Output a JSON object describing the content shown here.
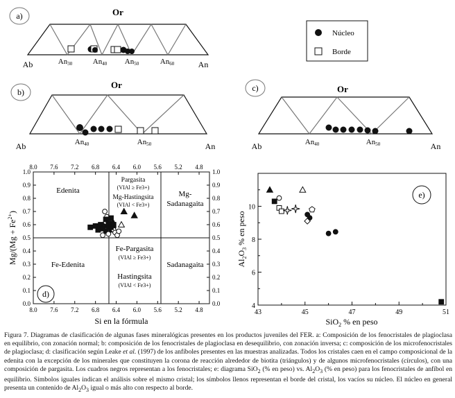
{
  "panel_a": {
    "label": "a)",
    "apex": "Or",
    "left_end": "Ab",
    "right_end": "An",
    "ticks": [
      {
        "base": "An",
        "sub": "30"
      },
      {
        "base": "An",
        "sub": "40"
      },
      {
        "base": "An",
        "sub": "50"
      },
      {
        "base": "An",
        "sub": "60"
      }
    ],
    "legend": {
      "nucleus": "Núcleo",
      "rim": "Borde"
    }
  },
  "panel_b": {
    "label": "b)",
    "apex": "Or",
    "left_end": "Ab",
    "right_end": "An",
    "ticks": [
      {
        "base": "An",
        "sub": "40"
      },
      {
        "base": "An",
        "sub": "50"
      }
    ]
  },
  "panel_c": {
    "label": "c)",
    "apex": "Or",
    "left_end": "Ab",
    "right_end": "An",
    "ticks": [
      {
        "base": "An",
        "sub": "40"
      },
      {
        "base": "An",
        "sub": "50"
      }
    ]
  },
  "chart_data": [
    {
      "type": "scatter",
      "panel": "d)",
      "title": "",
      "xlabel": "Si en la fórmula",
      "ylabel_base": "Mg/(Mg + Fe",
      "ylabel_sup": "2+",
      "ylabel_end": ")",
      "xlim": [
        8.0,
        4.6
      ],
      "ylim": [
        0.0,
        1.0
      ],
      "x_ticks": [
        "8.0",
        "7.6",
        "7.2",
        "6.8",
        "6.4",
        "6.0",
        "5.6",
        "5.2",
        "4.8"
      ],
      "y_ticks": [
        "0.0",
        "0.1",
        "0.2",
        "0.3",
        "0.4",
        "0.5",
        "0.6",
        "0.7",
        "0.8",
        "0.9",
        "1.0"
      ],
      "fields": {
        "edenita": "Edenita",
        "fe_edenita": "Fe-Edenita",
        "pargasita": "Pargasita",
        "pargasita_cond": "(VIAl ≥ Fe3+)",
        "mg_hastingsita": "Mg-Hastingsita",
        "mg_hastingsita_cond": "(VIAl < Fe3+)",
        "mg_sadanagaita_1": "Mg-",
        "mg_sadanagaita_2": "Sadanagaita",
        "fe_pargasita": "Fe-Pargasita",
        "fe_pargasita_cond": "(VIAl ≥ Fe3+)",
        "hastingsita": "Hastingsita",
        "hastingsita_cond": "(VIAl < Fe3+)",
        "sadanagaita": "Sadanagaita"
      },
      "series": [
        {
          "name": "filled circles",
          "points": [
            [
              6.6,
              0.6
            ],
            [
              6.55,
              0.58
            ],
            [
              6.5,
              0.56
            ],
            [
              6.45,
              0.58
            ],
            [
              6.6,
              0.55
            ],
            [
              6.7,
              0.57
            ],
            [
              6.48,
              0.62
            ]
          ]
        },
        {
          "name": "open circles",
          "points": [
            [
              6.62,
              0.7
            ],
            [
              6.58,
              0.66
            ],
            [
              6.52,
              0.64
            ],
            [
              6.6,
              0.62
            ],
            [
              6.5,
              0.6
            ],
            [
              6.45,
              0.56
            ],
            [
              6.42,
              0.54
            ],
            [
              6.55,
              0.53
            ],
            [
              6.38,
              0.52
            ],
            [
              6.66,
              0.52
            ],
            [
              6.35,
              0.55
            ]
          ]
        },
        {
          "name": "filled squares",
          "points": [
            [
              6.9,
              0.58
            ],
            [
              6.8,
              0.59
            ],
            [
              6.75,
              0.56
            ],
            [
              6.7,
              0.6
            ],
            [
              6.6,
              0.64
            ],
            [
              6.55,
              0.61
            ],
            [
              6.5,
              0.58
            ],
            [
              6.45,
              0.6
            ],
            [
              6.65,
              0.57
            ],
            [
              6.5,
              0.65
            ]
          ]
        },
        {
          "name": "filled triangles",
          "points": [
            [
              6.25,
              0.7
            ],
            [
              6.05,
              0.67
            ]
          ]
        },
        {
          "name": "open triangles",
          "points": [
            [
              6.3,
              0.6
            ]
          ]
        }
      ]
    },
    {
      "type": "scatter",
      "panel": "e)",
      "title": "",
      "xlabel_base": "SiO",
      "xlabel_sub": "2",
      "xlabel_end": " % en peso",
      "ylabel_base": "Al",
      "ylabel_sub1": "2",
      "ylabel_mid": "O",
      "ylabel_sub2": "3",
      "ylabel_end": " % en peso",
      "xlim": [
        43,
        51
      ],
      "ylim": [
        4,
        12
      ],
      "x_ticks": [
        "43",
        "45",
        "47",
        "49",
        "51"
      ],
      "y_ticks": [
        "4",
        "6",
        "8",
        "10"
      ],
      "series": [
        {
          "name": "filled circles",
          "points": [
            [
              45.1,
              9.5
            ],
            [
              45.2,
              9.3
            ],
            [
              46.0,
              8.35
            ],
            [
              46.3,
              8.45
            ]
          ]
        },
        {
          "name": "open circles",
          "points": [
            [
              43.9,
              10.5
            ]
          ]
        },
        {
          "name": "filled squares",
          "points": [
            [
              43.7,
              10.3
            ],
            [
              50.8,
              4.2
            ]
          ]
        },
        {
          "name": "open squares",
          "points": [
            [
              43.9,
              9.9
            ],
            [
              44.0,
              9.7
            ]
          ]
        },
        {
          "name": "filled triangles",
          "points": [
            [
              43.5,
              11.0
            ]
          ]
        },
        {
          "name": "open triangles",
          "points": [
            [
              44.9,
              11.0
            ]
          ]
        },
        {
          "name": "open pentagons",
          "points": [
            [
              45.3,
              9.8
            ]
          ]
        },
        {
          "name": "open diamonds",
          "points": [
            [
              45.1,
              9.1
            ]
          ]
        },
        {
          "name": "stars",
          "points": [
            [
              44.25,
              9.75
            ],
            [
              44.6,
              9.85
            ]
          ]
        }
      ]
    }
  ],
  "caption": {
    "t1": "Figura 7. Diagramas de clasificación de algunas fases mineralógicas presentes en los productos juveniles del FER. a: Composición de los fenocristales de plagioclasa en equilibrio, con zonación normal; b: composición de los fenocristales de plagioclasa en desequilibrio, con zonación inversa; c: composición de los microfenocristales de plagioclasa; d: clasificación según Leake ",
    "t_italic": "et al.",
    "t2": " (1997) de los anfíboles presentes en las muestras analizadas. Todos los cristales caen en el campo composicional de la edenita con la excepción de los minerales que constituyen la corona de reacción alrededor de biotita (triángulos) y de algunos microfenocristales (círculos), con una composición de pargasita. Los cuadros negros representan a los fenocristales; e: diagrama SiO",
    "t2_sub": "2",
    "t3": " (% en peso) vs. Al",
    "t3_sub1": "2",
    "t3_mid": "O",
    "t3_sub2": "3",
    "t4": " (% en peso) para los fenocristales de anfíbol en equilibrio. Símbolos iguales indican el análisis sobre el mismo cristal; los símbolos llenos representan el borde del cristal, los vacíos su núcleo. El núcleo en general presenta un contenido de Al",
    "t4_sub1": "2",
    "t4_mid": "O",
    "t4_sub2": "3",
    "t5": " igual o más alto con respecto al borde."
  }
}
